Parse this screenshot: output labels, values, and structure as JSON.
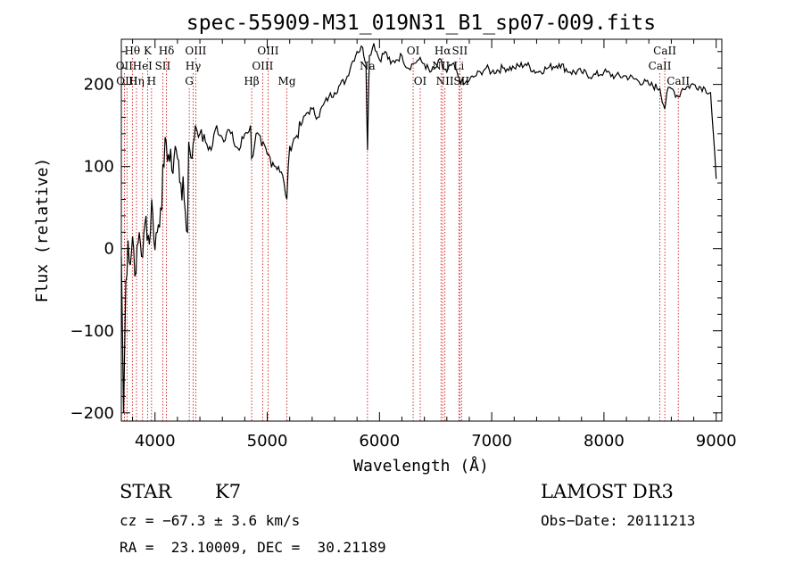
{
  "chart_data": {
    "type": "line",
    "title": "spec-55909-M31_019N31_B1_sp07-009.fits",
    "xlabel": "Wavelength (Å)",
    "ylabel": "Flux (relative)",
    "xlim": [
      3700,
      9050
    ],
    "ylim": [
      -210,
      255
    ],
    "xticks": [
      4000,
      5000,
      6000,
      7000,
      8000,
      9000
    ],
    "yticks": [
      -200,
      -100,
      0,
      100,
      200
    ],
    "series": [
      {
        "name": "spectrum",
        "x": [
          3700,
          3720,
          3740,
          3760,
          3780,
          3800,
          3830,
          3860,
          3890,
          3920,
          3950,
          3970,
          3990,
          4020,
          4050,
          4080,
          4100,
          4120,
          4150,
          4180,
          4200,
          4230,
          4260,
          4290,
          4300,
          4330,
          4360,
          4400,
          4450,
          4500,
          4550,
          4600,
          4650,
          4700,
          4750,
          4800,
          4850,
          4861,
          4900,
          4950,
          5000,
          5050,
          5100,
          5150,
          5175,
          5200,
          5250,
          5300,
          5350,
          5400,
          5450,
          5500,
          5550,
          5600,
          5650,
          5700,
          5750,
          5800,
          5850,
          5880,
          5893,
          5910,
          5950,
          6000,
          6050,
          6100,
          6150,
          6200,
          6250,
          6300,
          6350,
          6400,
          6450,
          6500,
          6550,
          6563,
          6600,
          6650,
          6700,
          6750,
          6800,
          6850,
          6900,
          6950,
          7000,
          7100,
          7200,
          7300,
          7400,
          7500,
          7600,
          7700,
          7800,
          7900,
          8000,
          8100,
          8200,
          8300,
          8400,
          8498,
          8542,
          8560,
          8600,
          8662,
          8700,
          8800,
          8900,
          8950,
          9000
        ],
        "values": [
          -10,
          -200,
          -40,
          10,
          -20,
          15,
          -30,
          20,
          -10,
          40,
          5,
          60,
          10,
          20,
          50,
          100,
          130,
          115,
          95,
          125,
          110,
          80,
          60,
          20,
          130,
          110,
          150,
          140,
          130,
          120,
          150,
          135,
          145,
          130,
          120,
          140,
          150,
          110,
          140,
          125,
          115,
          105,
          100,
          80,
          60,
          125,
          135,
          150,
          165,
          170,
          160,
          175,
          185,
          190,
          200,
          205,
          225,
          240,
          245,
          225,
          120,
          235,
          250,
          230,
          240,
          225,
          230,
          235,
          220,
          225,
          230,
          225,
          215,
          220,
          230,
          220,
          215,
          225,
          210,
          200,
          205,
          210,
          215,
          220,
          215,
          220,
          220,
          225,
          215,
          220,
          225,
          215,
          215,
          210,
          215,
          210,
          210,
          205,
          200,
          195,
          170,
          190,
          195,
          185,
          195,
          200,
          195,
          190,
          85
        ]
      }
    ],
    "emission_lines": [
      {
        "name": "Hθ",
        "x": 3798,
        "row": 1
      },
      {
        "name": "OII",
        "x": 3727,
        "row": 2
      },
      {
        "name": "OIII",
        "x": 3750,
        "row": 3
      },
      {
        "name": "Hη",
        "x": 3835,
        "row": 3
      },
      {
        "name": "K",
        "x": 3934,
        "row": 1
      },
      {
        "name": "HeI",
        "x": 3889,
        "row": 2
      },
      {
        "name": "SII",
        "x": 4069,
        "row": 2
      },
      {
        "name": "H",
        "x": 3969,
        "row": 3
      },
      {
        "name": "Hδ",
        "x": 4102,
        "row": 1
      },
      {
        "name": "OIII",
        "x": 4363,
        "row": 1
      },
      {
        "name": "Hγ",
        "x": 4340,
        "row": 2
      },
      {
        "name": "G",
        "x": 4305,
        "row": 3
      },
      {
        "name": "Hβ",
        "x": 4861,
        "row": 3
      },
      {
        "name": "OIII",
        "x": 5007,
        "row": 1
      },
      {
        "name": "OIII",
        "x": 4959,
        "row": 2
      },
      {
        "name": "Mg",
        "x": 5175,
        "row": 3
      },
      {
        "name": "Na",
        "x": 5893,
        "row": 2
      },
      {
        "name": "OI",
        "x": 6300,
        "row": 1
      },
      {
        "name": "OI",
        "x": 6363,
        "row": 3
      },
      {
        "name": "Hα",
        "x": 6563,
        "row": 1
      },
      {
        "name": "NII",
        "x": 6548,
        "row": 2
      },
      {
        "name": "NII",
        "x": 6583,
        "row": 3
      },
      {
        "name": "SII",
        "x": 6716,
        "row": 1
      },
      {
        "name": "SII",
        "x": 6731,
        "row": 3
      },
      {
        "name": "Li",
        "x": 6707,
        "row": 2
      },
      {
        "name": "CaII",
        "x": 8542,
        "row": 1
      },
      {
        "name": "CaII",
        "x": 8498,
        "row": 2
      },
      {
        "name": "CaII",
        "x": 8662,
        "row": 3
      }
    ]
  },
  "info": {
    "class": "STAR",
    "subclass": "K7",
    "survey": "LAMOST DR3",
    "cz": "cz = −67.3 ± 3.6 km/s",
    "obs_date": "Obs−Date: 20111213",
    "radec": "RA =  23.10009, DEC =  30.21189"
  },
  "colors": {
    "spectrum": "#000000",
    "line_marker": "#cc0000"
  }
}
